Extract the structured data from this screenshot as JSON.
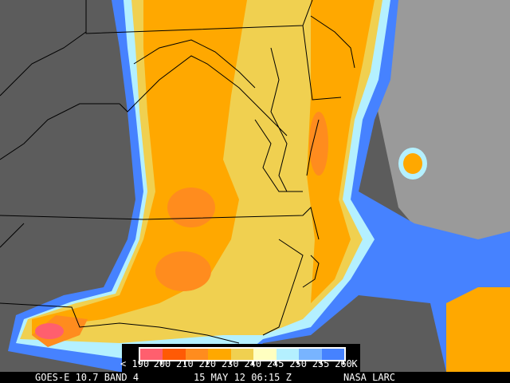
{
  "footer": {
    "satellite": "GOES-E 10.7 BAND 4",
    "datetime": "15 MAY 12 06:15 Z",
    "source": "NASA LARC"
  },
  "legend": {
    "unit": "K",
    "labels": [
      "< 190",
      "200",
      "210",
      "220",
      "230",
      "240",
      "245",
      "250",
      "255",
      "260"
    ],
    "colors": [
      "#ff5f6e",
      "#ff5a05",
      "#ff8c1e",
      "#ffa800",
      "#f0d050",
      "#ffffc0",
      "#b4f0ff",
      "#78b4ff",
      "#4682ff"
    ]
  }
}
